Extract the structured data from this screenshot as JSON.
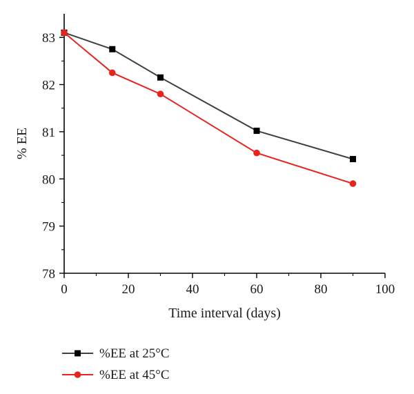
{
  "chart_data": {
    "type": "line",
    "title": "",
    "xlabel": "Time interval (days)",
    "ylabel": "% EE",
    "xlim": [
      0,
      100
    ],
    "ylim": [
      78,
      83.5
    ],
    "x_ticks": [
      0,
      20,
      40,
      60,
      80,
      100
    ],
    "x_tick_labels": [
      "0",
      "20",
      "40",
      "60",
      "80",
      "100"
    ],
    "y_ticks": [
      78,
      79,
      80,
      81,
      82,
      83
    ],
    "y_tick_labels": [
      "78",
      "79",
      "80",
      "81",
      "82",
      "83"
    ],
    "grid": false,
    "legend_position": "bottom-left",
    "series": [
      {
        "name": "%EE at 25°C",
        "color": "#404040",
        "marker": "square",
        "x": [
          0,
          15,
          30,
          60,
          90
        ],
        "y": [
          83.1,
          82.75,
          82.15,
          81.02,
          80.42
        ]
      },
      {
        "name": "%EE at 45°C",
        "color": "#e8231c",
        "marker": "circle",
        "x": [
          0,
          15,
          30,
          60,
          90
        ],
        "y": [
          83.1,
          82.25,
          81.8,
          80.55,
          79.9
        ]
      }
    ]
  }
}
